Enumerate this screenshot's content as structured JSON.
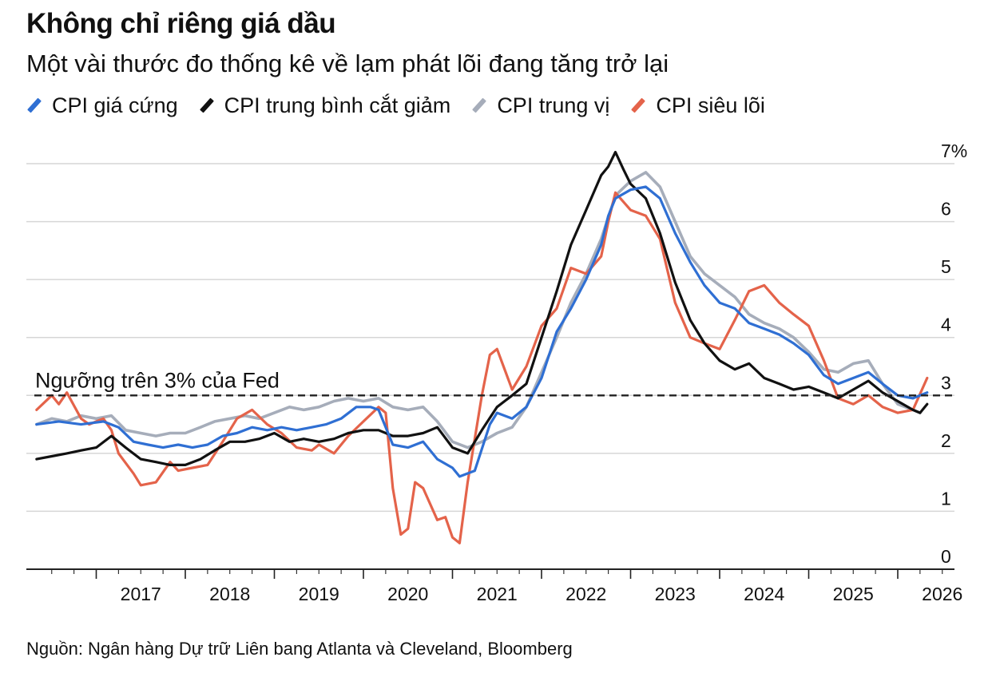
{
  "header": {
    "title": "Không chỉ riêng giá dầu",
    "subtitle": "Một vài thước đo thống kê về lạm phát lõi đang tăng trở lại"
  },
  "source": "Nguồn: Ngân hàng Dự trữ Liên bang Atlanta và Cleveland, Bloomberg",
  "colors": {
    "sticky": "#2f6fd3",
    "trimmed": "#111111",
    "median": "#a6adba",
    "supercore": "#e4634a",
    "grid": "#d6d6d6",
    "axis": "#222222"
  },
  "chart_data": {
    "type": "line",
    "title": "Không chỉ riêng giá dầu",
    "subtitle": "Một vài thước đo thống kê về lạm phát lõi đang tăng trở lại",
    "xlabel": "",
    "ylabel": "",
    "x_ticks": [
      "2017",
      "2018",
      "2019",
      "2020",
      "2021",
      "2022",
      "2023",
      "2024",
      "2025",
      "2026"
    ],
    "y_ticks": [
      0,
      1,
      2,
      3,
      4,
      5,
      6,
      7
    ],
    "y_tick_labels": [
      "0",
      "1",
      "2",
      "3",
      "4",
      "5",
      "6",
      "7%"
    ],
    "ylim": [
      0,
      7
    ],
    "xlim": [
      2016.25,
      2026.4
    ],
    "grid": true,
    "legend_position": "top-left",
    "threshold": {
      "value": 3,
      "label": "Ngưỡng trên 3% của Fed"
    },
    "series": [
      {
        "name": "CPI giá cứng",
        "color_key": "sticky",
        "points": [
          [
            2016.33,
            2.5
          ],
          [
            2016.58,
            2.55
          ],
          [
            2016.83,
            2.5
          ],
          [
            2017.08,
            2.55
          ],
          [
            2017.25,
            2.45
          ],
          [
            2017.42,
            2.2
          ],
          [
            2017.58,
            2.15
          ],
          [
            2017.75,
            2.1
          ],
          [
            2017.92,
            2.15
          ],
          [
            2018.08,
            2.1
          ],
          [
            2018.25,
            2.15
          ],
          [
            2018.42,
            2.3
          ],
          [
            2018.58,
            2.35
          ],
          [
            2018.75,
            2.45
          ],
          [
            2018.92,
            2.4
          ],
          [
            2019.08,
            2.45
          ],
          [
            2019.25,
            2.4
          ],
          [
            2019.42,
            2.45
          ],
          [
            2019.58,
            2.5
          ],
          [
            2019.75,
            2.6
          ],
          [
            2019.92,
            2.8
          ],
          [
            2020.08,
            2.8
          ],
          [
            2020.17,
            2.75
          ],
          [
            2020.33,
            2.15
          ],
          [
            2020.5,
            2.1
          ],
          [
            2020.67,
            2.2
          ],
          [
            2020.83,
            1.9
          ],
          [
            2021.0,
            1.75
          ],
          [
            2021.08,
            1.6
          ],
          [
            2021.25,
            1.7
          ],
          [
            2021.42,
            2.5
          ],
          [
            2021.5,
            2.7
          ],
          [
            2021.67,
            2.6
          ],
          [
            2021.83,
            2.8
          ],
          [
            2022.0,
            3.3
          ],
          [
            2022.17,
            4.1
          ],
          [
            2022.33,
            4.5
          ],
          [
            2022.5,
            5.0
          ],
          [
            2022.67,
            5.6
          ],
          [
            2022.75,
            6.1
          ],
          [
            2022.83,
            6.4
          ],
          [
            2023.0,
            6.55
          ],
          [
            2023.17,
            6.6
          ],
          [
            2023.33,
            6.4
          ],
          [
            2023.5,
            5.8
          ],
          [
            2023.67,
            5.3
          ],
          [
            2023.83,
            4.9
          ],
          [
            2024.0,
            4.6
          ],
          [
            2024.17,
            4.5
          ],
          [
            2024.33,
            4.25
          ],
          [
            2024.5,
            4.15
          ],
          [
            2024.67,
            4.05
          ],
          [
            2024.83,
            3.9
          ],
          [
            2025.0,
            3.7
          ],
          [
            2025.17,
            3.35
          ],
          [
            2025.33,
            3.2
          ],
          [
            2025.5,
            3.3
          ],
          [
            2025.67,
            3.4
          ],
          [
            2025.83,
            3.2
          ],
          [
            2026.0,
            3.0
          ],
          [
            2026.17,
            2.95
          ],
          [
            2026.33,
            3.05
          ]
        ]
      },
      {
        "name": "CPI trung bình cắt giảm",
        "color_key": "trimmed",
        "points": [
          [
            2016.33,
            1.9
          ],
          [
            2016.5,
            1.95
          ],
          [
            2016.67,
            2.0
          ],
          [
            2016.83,
            2.05
          ],
          [
            2017.0,
            2.1
          ],
          [
            2017.17,
            2.3
          ],
          [
            2017.33,
            2.1
          ],
          [
            2017.5,
            1.9
          ],
          [
            2017.67,
            1.85
          ],
          [
            2017.83,
            1.8
          ],
          [
            2018.0,
            1.8
          ],
          [
            2018.17,
            1.9
          ],
          [
            2018.33,
            2.05
          ],
          [
            2018.5,
            2.2
          ],
          [
            2018.67,
            2.2
          ],
          [
            2018.83,
            2.25
          ],
          [
            2019.0,
            2.35
          ],
          [
            2019.17,
            2.2
          ],
          [
            2019.33,
            2.25
          ],
          [
            2019.5,
            2.2
          ],
          [
            2019.67,
            2.25
          ],
          [
            2019.83,
            2.35
          ],
          [
            2020.0,
            2.4
          ],
          [
            2020.17,
            2.4
          ],
          [
            2020.33,
            2.3
          ],
          [
            2020.5,
            2.3
          ],
          [
            2020.67,
            2.35
          ],
          [
            2020.83,
            2.45
          ],
          [
            2021.0,
            2.1
          ],
          [
            2021.17,
            2.0
          ],
          [
            2021.33,
            2.4
          ],
          [
            2021.5,
            2.8
          ],
          [
            2021.67,
            3.0
          ],
          [
            2021.83,
            3.2
          ],
          [
            2022.0,
            4.0
          ],
          [
            2022.17,
            4.8
          ],
          [
            2022.33,
            5.6
          ],
          [
            2022.5,
            6.2
          ],
          [
            2022.67,
            6.8
          ],
          [
            2022.75,
            6.95
          ],
          [
            2022.83,
            7.2
          ],
          [
            2022.92,
            6.9
          ],
          [
            2023.0,
            6.65
          ],
          [
            2023.17,
            6.4
          ],
          [
            2023.33,
            5.8
          ],
          [
            2023.5,
            4.95
          ],
          [
            2023.67,
            4.3
          ],
          [
            2023.83,
            3.9
          ],
          [
            2024.0,
            3.6
          ],
          [
            2024.17,
            3.45
          ],
          [
            2024.33,
            3.55
          ],
          [
            2024.5,
            3.3
          ],
          [
            2024.67,
            3.2
          ],
          [
            2024.83,
            3.1
          ],
          [
            2025.0,
            3.15
          ],
          [
            2025.17,
            3.05
          ],
          [
            2025.33,
            2.95
          ],
          [
            2025.5,
            3.1
          ],
          [
            2025.67,
            3.25
          ],
          [
            2025.83,
            3.05
          ],
          [
            2026.0,
            2.9
          ],
          [
            2026.17,
            2.75
          ],
          [
            2026.25,
            2.7
          ],
          [
            2026.33,
            2.85
          ]
        ]
      },
      {
        "name": "CPI trung vị",
        "color_key": "median",
        "points": [
          [
            2016.33,
            2.5
          ],
          [
            2016.5,
            2.6
          ],
          [
            2016.67,
            2.55
          ],
          [
            2016.83,
            2.65
          ],
          [
            2017.0,
            2.6
          ],
          [
            2017.17,
            2.65
          ],
          [
            2017.33,
            2.4
          ],
          [
            2017.5,
            2.35
          ],
          [
            2017.67,
            2.3
          ],
          [
            2017.83,
            2.35
          ],
          [
            2018.0,
            2.35
          ],
          [
            2018.17,
            2.45
          ],
          [
            2018.33,
            2.55
          ],
          [
            2018.5,
            2.6
          ],
          [
            2018.67,
            2.65
          ],
          [
            2018.83,
            2.6
          ],
          [
            2019.0,
            2.7
          ],
          [
            2019.17,
            2.8
          ],
          [
            2019.33,
            2.75
          ],
          [
            2019.5,
            2.8
          ],
          [
            2019.67,
            2.9
          ],
          [
            2019.83,
            2.95
          ],
          [
            2020.0,
            2.9
          ],
          [
            2020.17,
            2.95
          ],
          [
            2020.33,
            2.8
          ],
          [
            2020.5,
            2.75
          ],
          [
            2020.67,
            2.8
          ],
          [
            2020.83,
            2.55
          ],
          [
            2021.0,
            2.2
          ],
          [
            2021.17,
            2.1
          ],
          [
            2021.33,
            2.2
          ],
          [
            2021.5,
            2.35
          ],
          [
            2021.67,
            2.45
          ],
          [
            2021.83,
            2.8
          ],
          [
            2022.0,
            3.4
          ],
          [
            2022.17,
            4.0
          ],
          [
            2022.33,
            4.6
          ],
          [
            2022.5,
            5.1
          ],
          [
            2022.67,
            5.7
          ],
          [
            2022.83,
            6.45
          ],
          [
            2023.0,
            6.7
          ],
          [
            2023.17,
            6.85
          ],
          [
            2023.33,
            6.6
          ],
          [
            2023.5,
            6.0
          ],
          [
            2023.67,
            5.4
          ],
          [
            2023.83,
            5.1
          ],
          [
            2024.0,
            4.9
          ],
          [
            2024.17,
            4.7
          ],
          [
            2024.33,
            4.4
          ],
          [
            2024.5,
            4.25
          ],
          [
            2024.67,
            4.15
          ],
          [
            2024.83,
            4.0
          ],
          [
            2025.0,
            3.75
          ],
          [
            2025.17,
            3.45
          ],
          [
            2025.33,
            3.4
          ],
          [
            2025.5,
            3.55
          ],
          [
            2025.67,
            3.6
          ],
          [
            2025.83,
            3.2
          ],
          [
            2026.0,
            2.85
          ],
          [
            2026.17,
            2.75
          ],
          [
            2026.25,
            2.7
          ]
        ]
      },
      {
        "name": "CPI siêu lõi",
        "color_key": "supercore",
        "points": [
          [
            2016.33,
            2.75
          ],
          [
            2016.5,
            3.0
          ],
          [
            2016.58,
            2.85
          ],
          [
            2016.67,
            3.05
          ],
          [
            2016.83,
            2.6
          ],
          [
            2016.92,
            2.5
          ],
          [
            2017.08,
            2.6
          ],
          [
            2017.17,
            2.4
          ],
          [
            2017.25,
            2.0
          ],
          [
            2017.42,
            1.65
          ],
          [
            2017.5,
            1.45
          ],
          [
            2017.67,
            1.5
          ],
          [
            2017.83,
            1.85
          ],
          [
            2017.92,
            1.7
          ],
          [
            2018.08,
            1.75
          ],
          [
            2018.25,
            1.8
          ],
          [
            2018.42,
            2.2
          ],
          [
            2018.58,
            2.6
          ],
          [
            2018.75,
            2.75
          ],
          [
            2018.92,
            2.5
          ],
          [
            2019.08,
            2.35
          ],
          [
            2019.25,
            2.1
          ],
          [
            2019.42,
            2.05
          ],
          [
            2019.5,
            2.15
          ],
          [
            2019.67,
            2.0
          ],
          [
            2019.83,
            2.3
          ],
          [
            2020.0,
            2.55
          ],
          [
            2020.17,
            2.8
          ],
          [
            2020.25,
            2.7
          ],
          [
            2020.33,
            1.4
          ],
          [
            2020.42,
            0.6
          ],
          [
            2020.5,
            0.7
          ],
          [
            2020.58,
            1.5
          ],
          [
            2020.67,
            1.4
          ],
          [
            2020.83,
            0.85
          ],
          [
            2020.92,
            0.9
          ],
          [
            2021.0,
            0.55
          ],
          [
            2021.08,
            0.45
          ],
          [
            2021.17,
            1.5
          ],
          [
            2021.33,
            3.0
          ],
          [
            2021.42,
            3.7
          ],
          [
            2021.5,
            3.8
          ],
          [
            2021.67,
            3.1
          ],
          [
            2021.83,
            3.5
          ],
          [
            2022.0,
            4.2
          ],
          [
            2022.17,
            4.5
          ],
          [
            2022.33,
            5.2
          ],
          [
            2022.5,
            5.1
          ],
          [
            2022.67,
            5.4
          ],
          [
            2022.75,
            6.0
          ],
          [
            2022.83,
            6.5
          ],
          [
            2023.0,
            6.2
          ],
          [
            2023.17,
            6.1
          ],
          [
            2023.33,
            5.7
          ],
          [
            2023.5,
            4.6
          ],
          [
            2023.67,
            4.0
          ],
          [
            2023.83,
            3.9
          ],
          [
            2024.0,
            3.8
          ],
          [
            2024.17,
            4.3
          ],
          [
            2024.33,
            4.8
          ],
          [
            2024.5,
            4.9
          ],
          [
            2024.67,
            4.6
          ],
          [
            2024.83,
            4.4
          ],
          [
            2025.0,
            4.2
          ],
          [
            2025.17,
            3.6
          ],
          [
            2025.33,
            2.95
          ],
          [
            2025.5,
            2.85
          ],
          [
            2025.67,
            3.0
          ],
          [
            2025.83,
            2.8
          ],
          [
            2026.0,
            2.7
          ],
          [
            2026.17,
            2.75
          ],
          [
            2026.33,
            3.3
          ]
        ]
      }
    ]
  }
}
